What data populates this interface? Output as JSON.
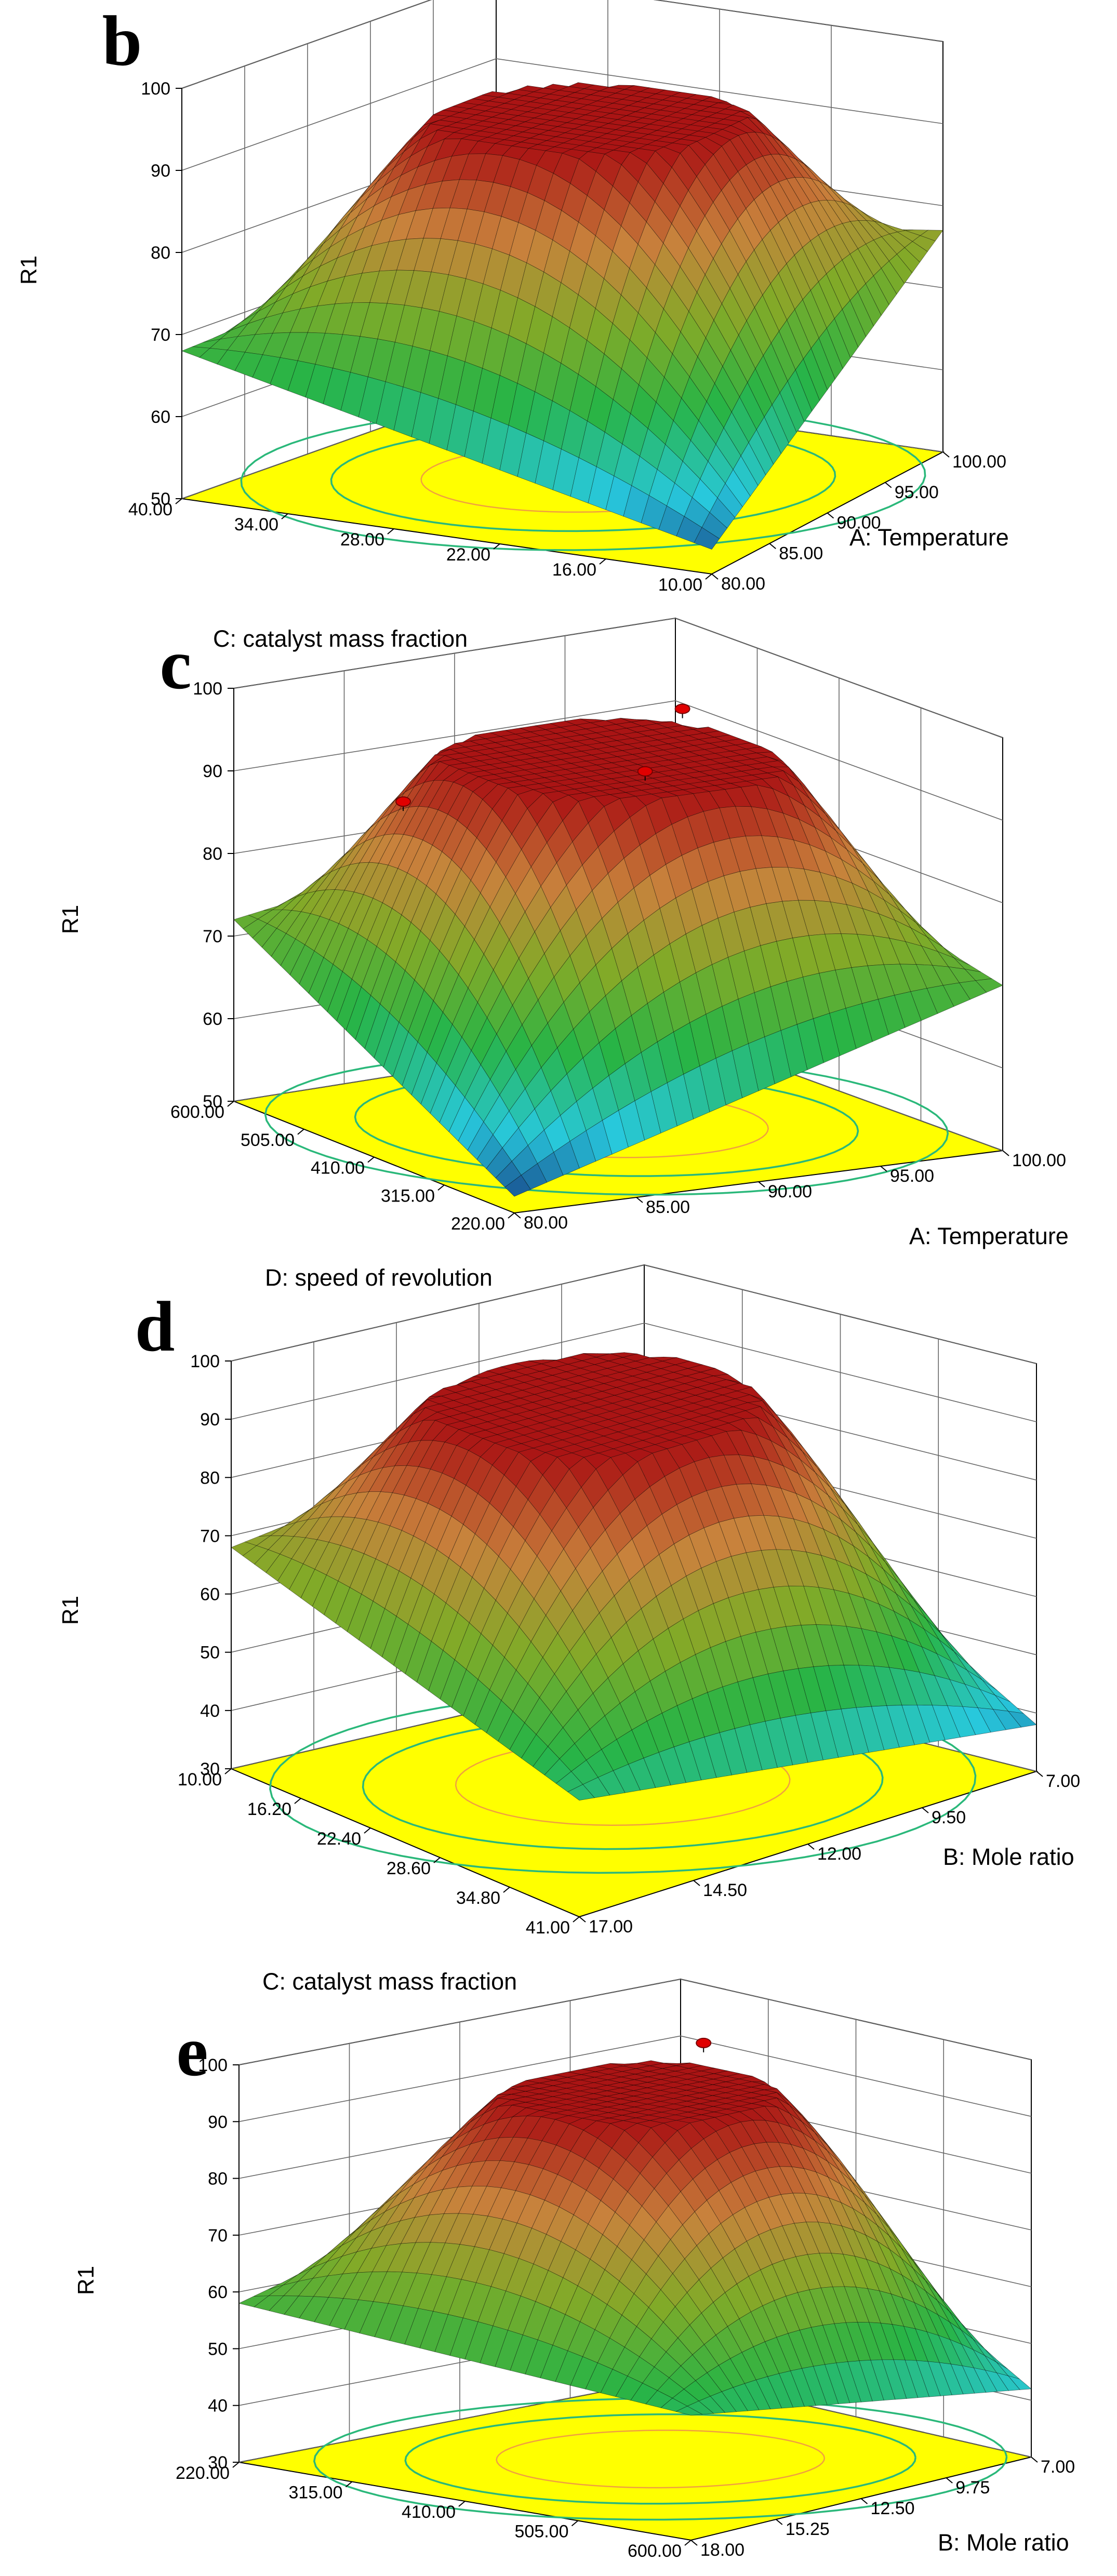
{
  "figure": "3D response surface plots of R1 with contour projections",
  "chart_data": [
    {
      "type": "surface",
      "panel": "b",
      "z_label": "R1",
      "z_ticks": [
        "100",
        "90",
        "80",
        "70",
        "60",
        "50"
      ],
      "zlim": [
        50,
        100
      ],
      "x_factor": "C: catalyst mass fraction",
      "x_ticks": [
        "40.00",
        "34.00",
        "28.00",
        "22.00",
        "16.00",
        "10.00"
      ],
      "y_factor": "A: Temperature",
      "y_ticks": [
        "80.00",
        "85.00",
        "90.00",
        "95.00",
        "100.00"
      ],
      "surface_peak": 93,
      "corner_values": {
        "left": 68,
        "front": 53,
        "right": 77,
        "back": 70
      },
      "design_points": [],
      "contour_colors": [
        "#2ab87a",
        "#f0a040"
      ]
    },
    {
      "type": "surface",
      "panel": "c",
      "z_label": "R1",
      "z_ticks": [
        "100",
        "90",
        "80",
        "70",
        "60",
        "50"
      ],
      "zlim": [
        50,
        100
      ],
      "x_factor": "D: speed of revolution",
      "x_ticks": [
        "600.00",
        "505.00",
        "410.00",
        "315.00",
        "220.00"
      ],
      "y_factor": "A: Temperature",
      "y_ticks": [
        "80.00",
        "85.00",
        "90.00",
        "95.00",
        "100.00"
      ],
      "surface_peak": 93,
      "corner_values": {
        "left": 72,
        "front": 52,
        "right": 70,
        "back": 80
      },
      "design_points": [
        {
          "label": "p1",
          "z": 95
        },
        {
          "label": "p2",
          "z": 93
        },
        {
          "label": "p3",
          "z": 84
        }
      ],
      "contour_colors": [
        "#2ab87a",
        "#f0a040"
      ]
    },
    {
      "type": "surface",
      "panel": "d",
      "z_label": "R1",
      "z_ticks": [
        "100",
        "90",
        "80",
        "70",
        "60",
        "50",
        "40",
        "30"
      ],
      "zlim": [
        30,
        100
      ],
      "x_factor": "C: catalyst mass fraction",
      "x_ticks": [
        "10.00",
        "16.20",
        "22.40",
        "28.60",
        "34.80",
        "41.00"
      ],
      "y_factor": "B: Mole ratio",
      "y_ticks": [
        "17.00",
        "14.50",
        "12.00",
        "9.50",
        "7.00"
      ],
      "surface_peak": 93,
      "corner_values": {
        "left": 68,
        "front": 50,
        "right": 38,
        "back": 80
      },
      "design_points": [],
      "contour_colors": [
        "#2ab87a",
        "#f0a040"
      ]
    },
    {
      "type": "surface",
      "panel": "e",
      "z_label": "R1",
      "z_ticks": [
        "100",
        "90",
        "80",
        "70",
        "60",
        "50",
        "40",
        "30"
      ],
      "zlim": [
        30,
        100
      ],
      "x_factor": "D: speed of revolution",
      "x_ticks": [
        "220.00",
        "315.00",
        "410.00",
        "505.00",
        "600.00"
      ],
      "y_factor": "B: Mole ratio",
      "y_ticks": [
        "18.00",
        "15.25",
        "12.50",
        "9.75",
        "7.00"
      ],
      "surface_peak": 93,
      "corner_values": {
        "left": 58,
        "front": 52,
        "right": 42,
        "back": 80
      },
      "design_points": [
        {
          "label": "p1",
          "z": 96
        }
      ],
      "contour_colors": [
        "#2ab87a",
        "#f0a040"
      ]
    }
  ]
}
